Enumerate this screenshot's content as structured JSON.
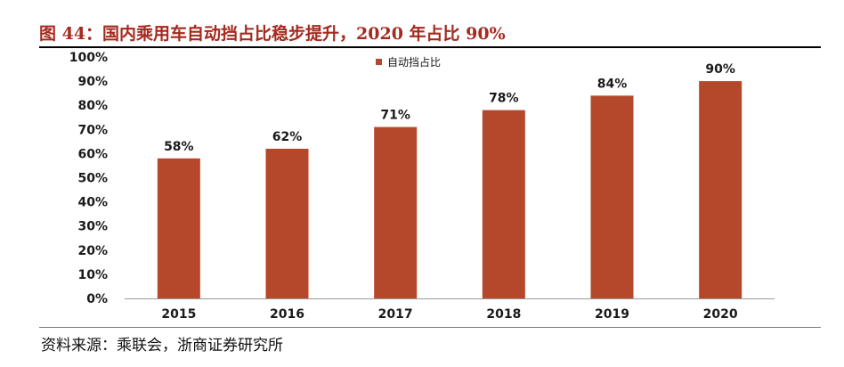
{
  "figure": {
    "title": "图 44：国内乘用车自动挡占比稳步提升，2020 年占比 90%",
    "source": "资料来源：乘联会，浙商证券研究所"
  },
  "chart_data": {
    "type": "bar",
    "categories": [
      "2015",
      "2016",
      "2017",
      "2018",
      "2019",
      "2020"
    ],
    "series": [
      {
        "name": "自动挡占比",
        "values": [
          58,
          62,
          71,
          78,
          84,
          90
        ],
        "labels": [
          "58%",
          "62%",
          "71%",
          "78%",
          "84%",
          "90%"
        ],
        "color": "#b5472b"
      }
    ],
    "yticks": [
      "0%",
      "10%",
      "20%",
      "30%",
      "40%",
      "50%",
      "60%",
      "70%",
      "80%",
      "90%",
      "100%"
    ],
    "ylim": [
      0,
      100
    ],
    "grid": false,
    "legend_position": "top-center"
  }
}
